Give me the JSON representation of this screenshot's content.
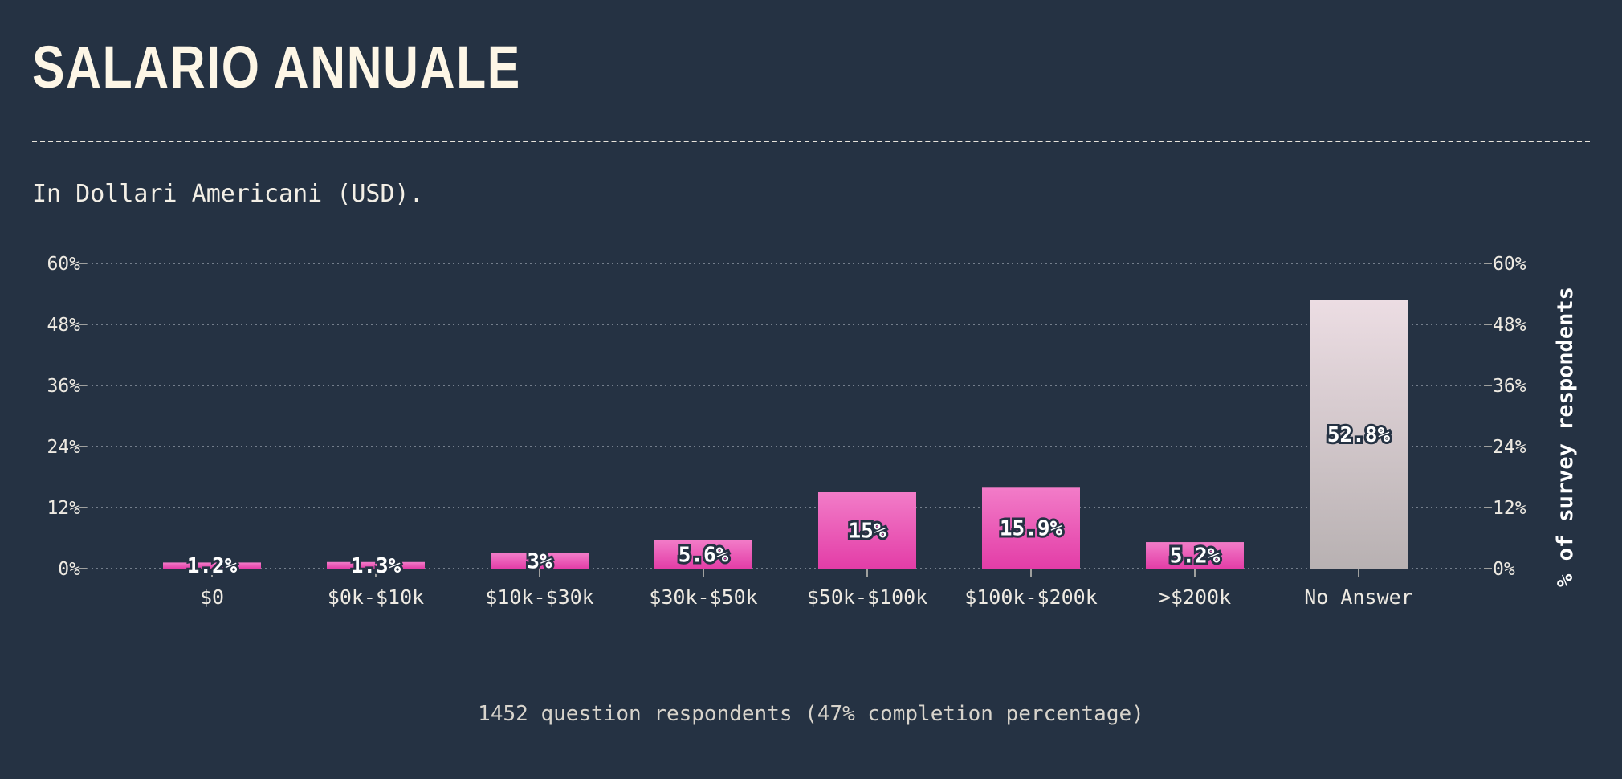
{
  "header": {
    "title": "SALARIO ANNUALE",
    "subtitle": "In Dollari Americani (USD)."
  },
  "footer": {
    "note": "1452 question respondents (47% completion percentage)"
  },
  "colors": {
    "background": "#253243",
    "bar_pink_top": "#f27cc8",
    "bar_pink_bottom": "#e33da7",
    "bar_grey_top": "#ecdde3",
    "bar_grey_bottom": "#b8b1b2",
    "text": "#eeeae2"
  },
  "chart_data": {
    "type": "bar",
    "categories": [
      "$0",
      "$0k-$10k",
      "$10k-$30k",
      "$30k-$50k",
      "$50k-$100k",
      "$100k-$200k",
      ">$200k",
      "No Answer"
    ],
    "values": [
      1.2,
      1.3,
      3,
      5.6,
      15,
      15.9,
      5.2,
      52.8
    ],
    "value_labels": [
      "1.2%",
      "1.3%",
      "3%",
      "5.6%",
      "15%",
      "15.9%",
      "5.2%",
      "52.8%"
    ],
    "highlight": [
      false,
      false,
      false,
      false,
      false,
      false,
      false,
      true
    ],
    "y_ticks": [
      0,
      12,
      24,
      36,
      48,
      60
    ],
    "y_tick_labels": [
      "0%",
      "12%",
      "24%",
      "36%",
      "48%",
      "60%"
    ],
    "ylim": [
      0,
      60
    ],
    "ylabel": "% of survey respondents",
    "xlabel": "",
    "grid": true
  }
}
